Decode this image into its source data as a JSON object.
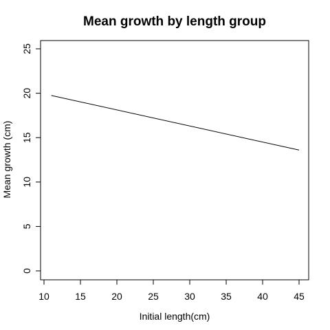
{
  "chart_data": {
    "type": "line",
    "title": "Mean growth by length group",
    "xlabel": "Initial length(cm)",
    "ylabel": "Mean growth (cm)",
    "xlim": [
      10,
      45
    ],
    "ylim": [
      0,
      25
    ],
    "xticks": [
      "10",
      "15",
      "20",
      "25",
      "30",
      "35",
      "40",
      "45"
    ],
    "yticks": [
      "0",
      "5",
      "10",
      "15",
      "20",
      "25"
    ],
    "grid": false,
    "colors": {
      "line": "#000000"
    },
    "series": [
      {
        "x": [
          11,
          45
        ],
        "y": [
          19.75,
          13.6
        ]
      }
    ]
  }
}
